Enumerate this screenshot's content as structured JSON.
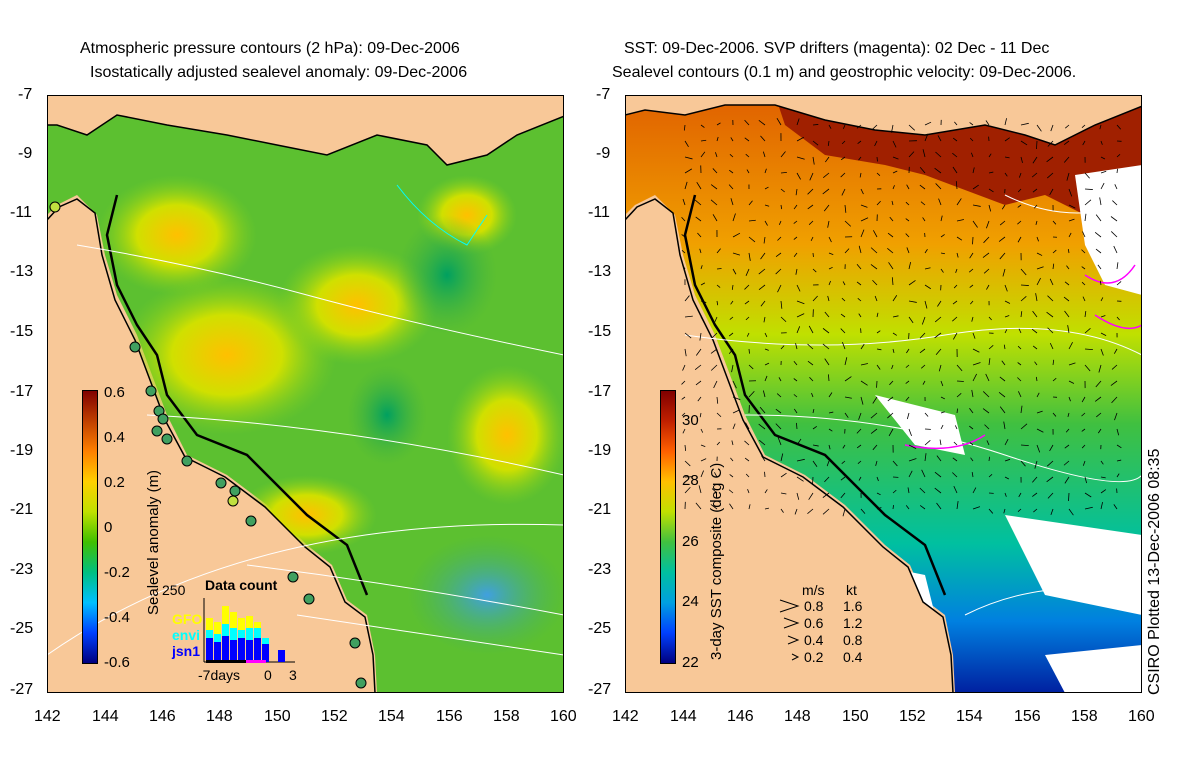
{
  "left_panel": {
    "title_line1": "Atmospheric pressure contours (2 hPa): 09-Dec-2006",
    "title_line2": "Isostatically adjusted sealevel anomaly: 09-Dec-2006",
    "colorbar": {
      "label": "Sealevel anomaly (m)",
      "ticks": [
        "0.6",
        "0.4",
        "0.2",
        "0",
        "-0.2",
        "-0.4",
        "-0.6"
      ],
      "range": [
        -0.6,
        0.6
      ],
      "colors": [
        "#000080",
        "#0040ff",
        "#00c0ff",
        "#00c080",
        "#40c000",
        "#c0e000",
        "#ffd000",
        "#ff8000",
        "#c04000",
        "#800000"
      ]
    },
    "data_count": {
      "title": "Data count",
      "ymax_label": "250",
      "legend": [
        {
          "label": "GFO",
          "color": "#ffff00"
        },
        {
          "label": "envi",
          "color": "#00ffff"
        },
        {
          "label": "jsn1",
          "color": "#0000ff"
        }
      ],
      "x_labels": [
        "-7days",
        "0",
        "3"
      ]
    }
  },
  "right_panel": {
    "title_line1": "SST: 09-Dec-2006. SVP drifters (magenta): 02 Dec - 11 Dec",
    "title_line2": "Sealevel contours (0.1 m) and geostrophic velocity: 09-Dec-2006.",
    "colorbar": {
      "label": "3-day SST composite (deg C)",
      "ticks": [
        "30",
        "28",
        "26",
        "24",
        "22"
      ],
      "range": [
        22,
        31
      ],
      "colors": [
        "#000080",
        "#0040ff",
        "#00a0e0",
        "#00c0a0",
        "#40c040",
        "#c0e000",
        "#ffc000",
        "#ff6000",
        "#c02000",
        "#800000"
      ]
    },
    "velocity_legend": {
      "header_ms": "m/s",
      "header_kt": "kt",
      "rows": [
        {
          "ms": "0.8",
          "kt": "1.6"
        },
        {
          "ms": "0.6",
          "kt": "1.2"
        },
        {
          "ms": "0.4",
          "kt": "0.8"
        },
        {
          "ms": "0.2",
          "kt": "0.4"
        }
      ]
    }
  },
  "axes": {
    "y_ticks": [
      "-7",
      "-9",
      "-11",
      "-13",
      "-15",
      "-17",
      "-19",
      "-21",
      "-23",
      "-25",
      "-27"
    ],
    "x_ticks": [
      "142",
      "144",
      "146",
      "148",
      "150",
      "152",
      "154",
      "156",
      "158",
      "160"
    ]
  },
  "footer_text": "CSIRO Plotted 13-Dec-2006 08:35",
  "colors": {
    "land": "#f8c898",
    "sst_warm": "#a02000",
    "contour": "#ffffff"
  }
}
